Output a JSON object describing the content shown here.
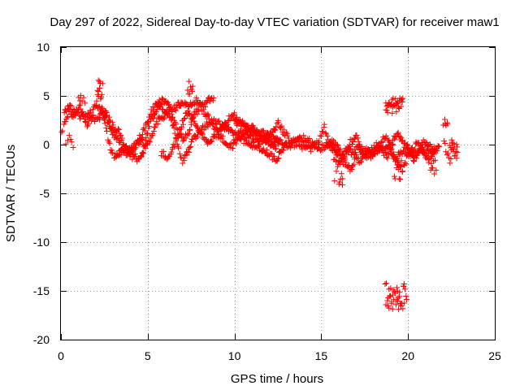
{
  "chart_data": {
    "type": "scatter",
    "title": "Day 297 of 2022, Sidereal Day-to-day VTEC variation (SDTVAR) for receiver maw1",
    "xlabel": "GPS time / hours",
    "ylabel": "SDTVAR / TECUs",
    "xlim": [
      0,
      25
    ],
    "ylim": [
      -20,
      10
    ],
    "xticks": [
      0,
      5,
      10,
      15,
      20,
      25
    ],
    "yticks": [
      -20,
      -15,
      -10,
      -5,
      0,
      5,
      10
    ],
    "grid": true,
    "marker": "+",
    "color": "#ff0000",
    "series": [
      {
        "name": "SDTVAR",
        "tracks": [
          [
            [
              0.0,
              1.2
            ],
            [
              0.15,
              2.0
            ],
            [
              0.3,
              2.8
            ],
            [
              0.5,
              3.3
            ],
            [
              0.7,
              3.0
            ],
            [
              0.9,
              3.5
            ],
            [
              1.1,
              2.6
            ],
            [
              1.3,
              3.0
            ],
            [
              1.5,
              1.6
            ],
            [
              1.7,
              2.4
            ],
            [
              1.9,
              3.6
            ],
            [
              2.1,
              4.8
            ],
            [
              2.2,
              6.2
            ],
            [
              2.35,
              4.0
            ],
            [
              2.5,
              2.2
            ],
            [
              2.7,
              0.8
            ],
            [
              2.9,
              -0.6
            ],
            [
              3.1,
              -1.2
            ],
            [
              3.4,
              -0.8
            ],
            [
              3.7,
              -0.4
            ],
            [
              4.0,
              -0.6
            ],
            [
              4.3,
              -0.2
            ],
            [
              4.6,
              0.4
            ],
            [
              4.8,
              -0.2
            ],
            [
              5.0,
              1.2
            ],
            [
              5.2,
              2.5
            ],
            [
              5.5,
              3.5
            ],
            [
              5.8,
              4.0
            ],
            [
              6.0,
              3.6
            ],
            [
              6.3,
              2.8
            ],
            [
              6.6,
              1.0
            ],
            [
              6.8,
              -0.6
            ],
            [
              7.0,
              -1.6
            ],
            [
              7.3,
              -0.8
            ],
            [
              7.6,
              0.4
            ],
            [
              8.0,
              1.4
            ],
            [
              8.4,
              2.0
            ],
            [
              8.8,
              2.4
            ],
            [
              9.2,
              2.0
            ],
            [
              9.6,
              1.6
            ],
            [
              10.0,
              1.2
            ],
            [
              10.4,
              0.6
            ],
            [
              10.8,
              0.2
            ],
            [
              11.2,
              -0.2
            ],
            [
              11.6,
              -0.6
            ],
            [
              12.0,
              -1.0
            ],
            [
              12.4,
              -1.6
            ],
            [
              12.7,
              -0.6
            ],
            [
              13.0,
              0.2
            ]
          ],
          [
            [
              0.2,
              3.4
            ],
            [
              0.5,
              3.8
            ],
            [
              0.8,
              3.2
            ],
            [
              1.1,
              3.9
            ],
            [
              1.4,
              2.8
            ],
            [
              1.7,
              3.2
            ],
            [
              2.0,
              2.6
            ],
            [
              2.3,
              3.0
            ],
            [
              2.6,
              3.2
            ],
            [
              2.9,
              2.0
            ],
            [
              3.2,
              1.6
            ],
            [
              3.5,
              0.8
            ],
            [
              3.8,
              -0.6
            ],
            [
              4.1,
              -1.2
            ],
            [
              4.4,
              -1.4
            ],
            [
              4.7,
              -0.8
            ],
            [
              5.0,
              0.0
            ],
            [
              5.3,
              1.4
            ],
            [
              5.6,
              2.6
            ],
            [
              6.0,
              3.0
            ],
            [
              6.3,
              3.6
            ],
            [
              6.6,
              3.8
            ],
            [
              6.9,
              4.2
            ],
            [
              7.2,
              4.4
            ],
            [
              7.5,
              4.0
            ],
            [
              7.8,
              4.6
            ],
            [
              8.2,
              3.6
            ],
            [
              8.6,
              2.4
            ],
            [
              9.0,
              1.2
            ],
            [
              9.4,
              0.4
            ],
            [
              9.8,
              -0.2
            ],
            [
              10.2,
              0.6
            ],
            [
              10.6,
              1.4
            ],
            [
              11.0,
              1.8
            ],
            [
              11.4,
              1.2
            ],
            [
              11.8,
              0.6
            ],
            [
              12.2,
              0.0
            ],
            [
              12.6,
              0.4
            ]
          ],
          [
            [
              2.0,
              4.0
            ],
            [
              2.3,
              3.4
            ],
            [
              2.6,
              2.6
            ],
            [
              2.9,
              1.4
            ],
            [
              3.2,
              0.6
            ],
            [
              3.5,
              -0.4
            ],
            [
              3.8,
              -0.8
            ],
            [
              4.1,
              -0.4
            ],
            [
              4.4,
              0.2
            ],
            [
              4.7,
              1.2
            ],
            [
              5.0,
              2.4
            ],
            [
              5.3,
              3.6
            ],
            [
              5.6,
              4.2
            ],
            [
              5.9,
              4.6
            ],
            [
              6.2,
              4.0
            ],
            [
              6.5,
              2.4
            ],
            [
              6.8,
              1.0
            ],
            [
              7.1,
              0.4
            ],
            [
              7.4,
              1.6
            ],
            [
              7.7,
              3.0
            ],
            [
              8.0,
              3.8
            ],
            [
              8.3,
              4.2
            ],
            [
              8.6,
              4.6
            ],
            [
              8.8,
              4.8
            ]
          ],
          [
            [
              5.8,
              -0.8
            ],
            [
              6.1,
              -1.4
            ],
            [
              6.4,
              -0.6
            ],
            [
              6.7,
              0.8
            ],
            [
              7.0,
              2.2
            ],
            [
              7.3,
              3.4
            ],
            [
              7.6,
              2.6
            ],
            [
              7.9,
              1.6
            ],
            [
              8.2,
              0.8
            ],
            [
              8.5,
              0.2
            ],
            [
              8.8,
              0.6
            ],
            [
              9.1,
              1.4
            ],
            [
              9.4,
              2.0
            ],
            [
              9.7,
              2.6
            ],
            [
              10.0,
              3.0
            ],
            [
              10.4,
              2.2
            ],
            [
              10.8,
              1.6
            ],
            [
              11.2,
              1.0
            ],
            [
              11.6,
              0.4
            ],
            [
              12.0,
              0.0
            ],
            [
              12.4,
              -0.4
            ]
          ],
          [
            [
              10.0,
              2.4
            ],
            [
              10.5,
              2.0
            ],
            [
              11.0,
              1.6
            ],
            [
              11.5,
              1.2
            ],
            [
              12.0,
              0.8
            ],
            [
              12.4,
              0.4
            ],
            [
              12.8,
              0.2
            ],
            [
              13.2,
              -0.2
            ],
            [
              13.6,
              0.0
            ],
            [
              14.0,
              -0.2
            ],
            [
              14.4,
              -0.4
            ],
            [
              14.8,
              0.2
            ],
            [
              15.0,
              1.0
            ],
            [
              15.2,
              1.8
            ],
            [
              15.4,
              0.6
            ],
            [
              15.6,
              -0.4
            ],
            [
              15.9,
              -0.8
            ],
            [
              16.2,
              -1.2
            ],
            [
              16.5,
              -0.4
            ],
            [
              16.8,
              -0.8
            ],
            [
              17.1,
              -0.2
            ],
            [
              17.4,
              -0.8
            ],
            [
              17.7,
              -0.6
            ],
            [
              18.0,
              -1.0
            ],
            [
              18.3,
              -0.4
            ],
            [
              18.6,
              -0.8
            ],
            [
              18.9,
              -0.2
            ],
            [
              19.2,
              -1.4
            ],
            [
              19.5,
              -1.0
            ],
            [
              19.8,
              -0.6
            ],
            [
              20.1,
              -0.8
            ],
            [
              20.4,
              -1.2
            ],
            [
              20.7,
              -0.4
            ],
            [
              21.0,
              -1.0
            ],
            [
              21.3,
              -0.2
            ],
            [
              21.6,
              -0.6
            ]
          ],
          [
            [
              10.2,
              1.4
            ],
            [
              10.6,
              0.8
            ],
            [
              11.0,
              0.6
            ],
            [
              11.4,
              0.2
            ],
            [
              11.8,
              0.4
            ],
            [
              12.2,
              1.2
            ],
            [
              12.5,
              2.2
            ],
            [
              12.8,
              1.4
            ],
            [
              13.2,
              0.4
            ],
            [
              13.6,
              0.4
            ],
            [
              14.0,
              0.6
            ],
            [
              14.4,
              0.2
            ],
            [
              14.8,
              -0.4
            ],
            [
              15.2,
              -0.2
            ],
            [
              15.6,
              0.4
            ],
            [
              16.0,
              -0.4
            ],
            [
              16.4,
              -2.0
            ],
            [
              16.7,
              -2.6
            ],
            [
              17.0,
              -1.4
            ],
            [
              17.3,
              -1.8
            ],
            [
              17.6,
              -0.6
            ],
            [
              17.9,
              -1.2
            ],
            [
              18.2,
              -0.4
            ],
            [
              18.5,
              0.4
            ],
            [
              18.8,
              0.8
            ],
            [
              19.1,
              -0.4
            ],
            [
              19.4,
              -1.8
            ],
            [
              19.7,
              -2.6
            ],
            [
              20.0,
              -1.0
            ],
            [
              20.3,
              -0.4
            ],
            [
              20.6,
              0.2
            ],
            [
              20.9,
              -0.6
            ],
            [
              21.2,
              -1.6
            ],
            [
              21.5,
              -0.8
            ],
            [
              21.8,
              -0.2
            ]
          ],
          [
            [
              15.3,
              0.2
            ],
            [
              15.6,
              -0.2
            ],
            [
              15.9,
              -0.8
            ],
            [
              16.1,
              -1.8
            ],
            [
              16.4,
              -1.0
            ],
            [
              16.7,
              0.2
            ],
            [
              17.0,
              0.8
            ],
            [
              17.3,
              -0.4
            ],
            [
              17.6,
              -1.2
            ],
            [
              17.9,
              -0.6
            ],
            [
              18.2,
              0.0
            ],
            [
              18.5,
              -0.6
            ],
            [
              18.8,
              -1.4
            ],
            [
              19.1,
              0.4
            ],
            [
              19.4,
              1.2
            ],
            [
              19.7,
              0.2
            ],
            [
              20.0,
              -0.4
            ],
            [
              20.3,
              -1.6
            ],
            [
              20.6,
              -0.8
            ],
            [
              20.9,
              0.4
            ],
            [
              21.2,
              -0.2
            ],
            [
              21.5,
              -1.0
            ]
          ],
          [
            [
              22.1,
              0.6
            ],
            [
              22.2,
              -0.4
            ],
            [
              22.3,
              -1.2
            ],
            [
              22.4,
              -1.8
            ],
            [
              22.5,
              -0.6
            ],
            [
              22.6,
              0.4
            ],
            [
              22.7,
              -0.8
            ],
            [
              22.8,
              -1.4
            ]
          ],
          [
            [
              22.4,
              -0.2
            ],
            [
              22.5,
              0.2
            ],
            [
              22.6,
              -0.4
            ],
            [
              22.7,
              -1.0
            ],
            [
              22.8,
              -0.2
            ],
            [
              22.85,
              -0.8
            ]
          ]
        ],
        "clusters": [
          {
            "xrange": [
              18.7,
              19.7
            ],
            "yrange": [
              3.2,
              4.8
            ],
            "count": 34
          },
          {
            "xrange": [
              18.7,
              19.9
            ],
            "yrange": [
              -16.9,
              -14.2
            ],
            "count": 40
          },
          {
            "xrange": [
              15.7,
              16.3
            ],
            "yrange": [
              -4.2,
              -1.5
            ],
            "count": 14
          },
          {
            "xrange": [
              19.2,
              19.6
            ],
            "yrange": [
              -3.8,
              -1.6
            ],
            "count": 10
          },
          {
            "xrange": [
              21.3,
              21.6
            ],
            "yrange": [
              -3.2,
              -1.6
            ],
            "count": 8
          },
          {
            "xrange": [
              22.05,
              22.3
            ],
            "yrange": [
              1.6,
              2.6
            ],
            "count": 6
          },
          {
            "xrange": [
              7.3,
              7.6
            ],
            "yrange": [
              5.0,
              6.8
            ],
            "count": 8
          },
          {
            "xrange": [
              2.1,
              2.4
            ],
            "yrange": [
              4.8,
              6.6
            ],
            "count": 8
          },
          {
            "xrange": [
              1.0,
              1.4
            ],
            "yrange": [
              4.2,
              5.3
            ],
            "count": 6
          },
          {
            "xrange": [
              0.3,
              0.7
            ],
            "yrange": [
              -0.4,
              1.0
            ],
            "count": 6
          }
        ]
      }
    ]
  }
}
